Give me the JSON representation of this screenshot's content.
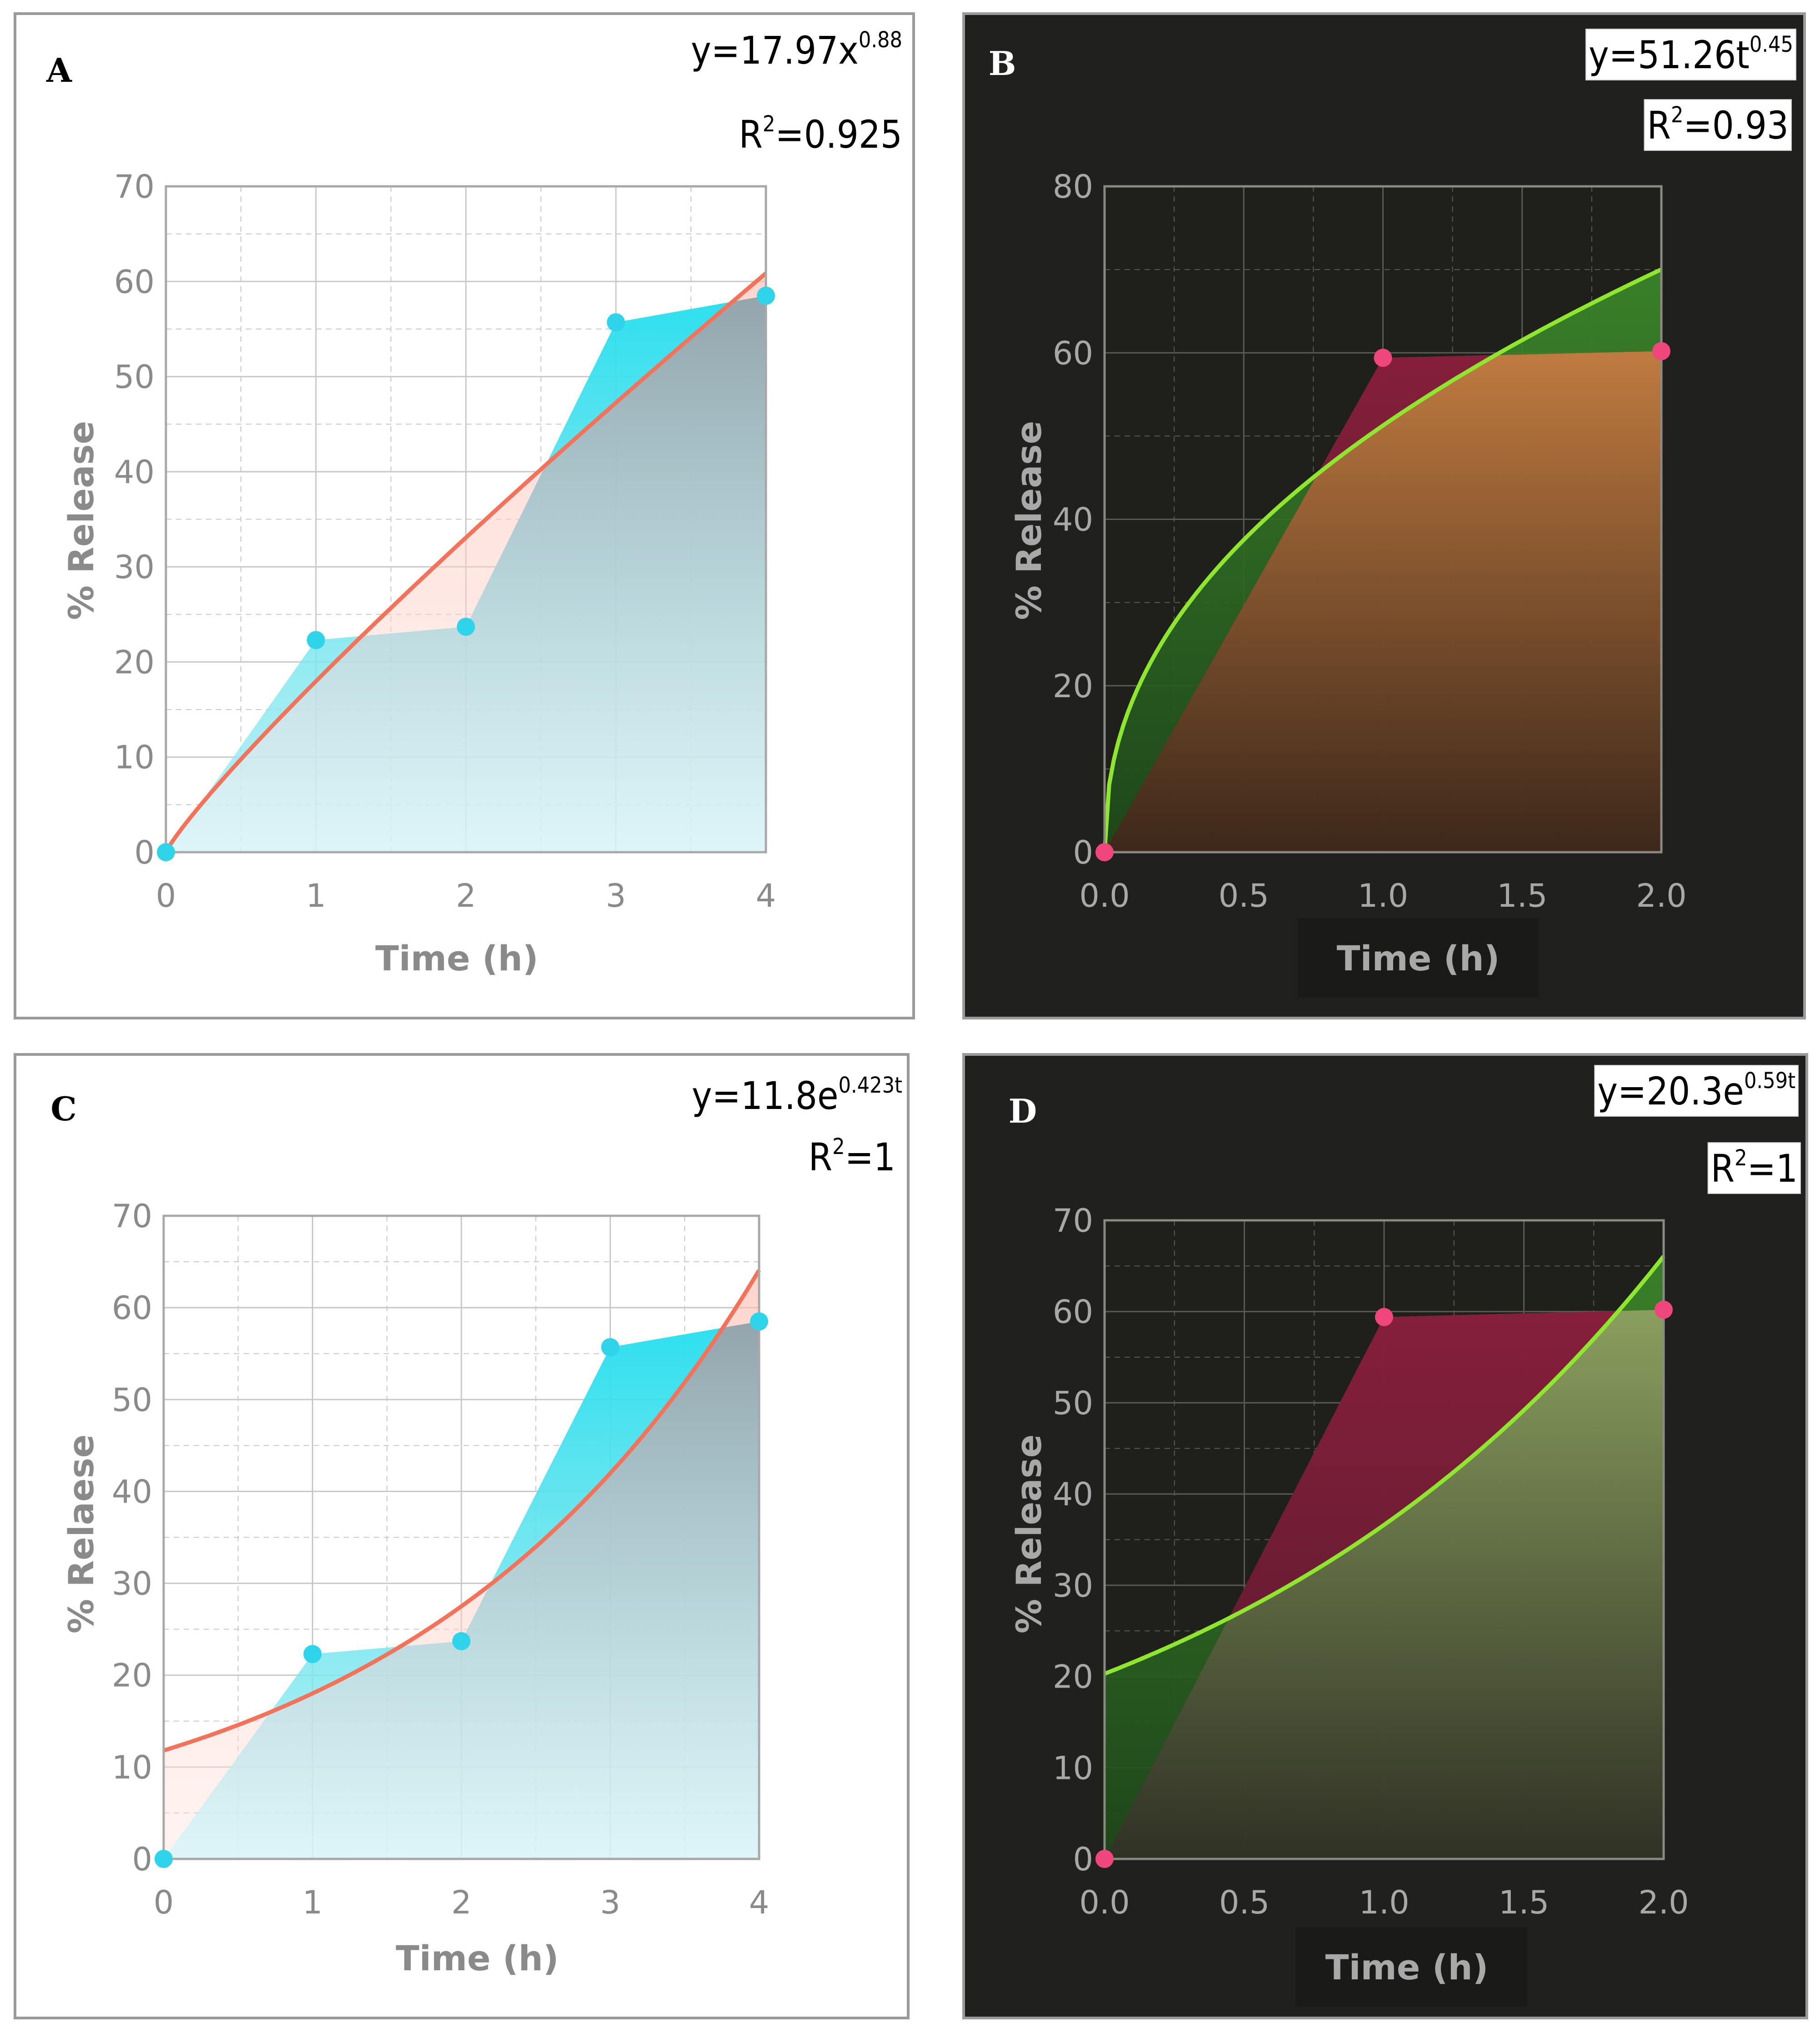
{
  "chart_data": [
    {
      "panel": "A",
      "type": "line",
      "theme": "light",
      "equation": {
        "base": "y=17.97x",
        "exponent": "0.88"
      },
      "r2": {
        "base": "R",
        "exponent": "2",
        "rest": "=0.925"
      },
      "xlabel": "Time (h)",
      "ylabel": "% Release",
      "xlim": [
        0,
        4
      ],
      "ylim": [
        0,
        70
      ],
      "xticks": [
        "0",
        "1",
        "2",
        "3",
        "4"
      ],
      "yticks": [
        "0",
        "10",
        "20",
        "30",
        "40",
        "50",
        "60",
        "70"
      ],
      "xtick_values": [
        0,
        1,
        2,
        3,
        4
      ],
      "ytick_values": [
        0,
        10,
        20,
        30,
        40,
        50,
        60,
        70
      ],
      "x": [
        0,
        1,
        2,
        3,
        4
      ],
      "observed": [
        0,
        22.3,
        23.7,
        55.7,
        58.5
      ],
      "fit": {
        "model": "power",
        "a": 17.97,
        "b": 0.88
      },
      "colors": {
        "points": "#2fd3ea",
        "fit": "#f2735a",
        "area": "#9ca3aa"
      }
    },
    {
      "panel": "B",
      "type": "line",
      "theme": "dark",
      "equation": {
        "base": "y=51.26t",
        "exponent": "0.45"
      },
      "r2": {
        "base": "R",
        "exponent": "2",
        "rest": "=0.93"
      },
      "xlabel": "Time (h)",
      "ylabel": "% Release",
      "xlim": [
        0,
        2
      ],
      "ylim": [
        0,
        80
      ],
      "xticks": [
        "0.0",
        "0.5",
        "1.0",
        "1.5",
        "2.0"
      ],
      "yticks": [
        "0",
        "20",
        "40",
        "60",
        "80"
      ],
      "xtick_values": [
        0,
        0.5,
        1,
        1.5,
        2
      ],
      "ytick_values": [
        0,
        20,
        40,
        60,
        80
      ],
      "x": [
        0,
        1,
        2
      ],
      "observed": [
        0,
        59.4,
        60.2
      ],
      "fit": {
        "model": "power",
        "a": 51.26,
        "b": 0.45
      },
      "colors": {
        "points": "#f0467e",
        "fit": "#8ee62e",
        "area": "#b87a3a"
      }
    },
    {
      "panel": "C",
      "type": "line",
      "theme": "light",
      "equation": {
        "base": "y=11.8e",
        "exponent": "0.423t"
      },
      "r2": {
        "base": "R",
        "exponent": "2",
        "rest": "=1"
      },
      "xlabel": "Time (h)",
      "ylabel": "% Relaese",
      "xlim": [
        0,
        4
      ],
      "ylim": [
        0,
        70
      ],
      "xticks": [
        "0",
        "1",
        "2",
        "3",
        "4"
      ],
      "yticks": [
        "0",
        "10",
        "20",
        "30",
        "40",
        "50",
        "60",
        "70"
      ],
      "xtick_values": [
        0,
        1,
        2,
        3,
        4
      ],
      "ytick_values": [
        0,
        10,
        20,
        30,
        40,
        50,
        60,
        70
      ],
      "x": [
        0,
        1,
        2,
        3,
        4
      ],
      "observed": [
        0,
        22.3,
        23.7,
        55.7,
        58.5
      ],
      "fit": {
        "model": "exponential",
        "a": 11.8,
        "b": 0.423
      },
      "colors": {
        "points": "#2fd3ea",
        "fit": "#f2735a",
        "area": "#9ca3aa"
      }
    },
    {
      "panel": "D",
      "type": "line",
      "theme": "dark",
      "equation": {
        "base": "y=20.3e",
        "exponent": "0.59t"
      },
      "r2": {
        "base": "R",
        "exponent": "2",
        "rest": "=1"
      },
      "xlabel": "Time (h)",
      "ylabel": "% Release",
      "xlim": [
        0,
        2
      ],
      "ylim": [
        0,
        70
      ],
      "xticks": [
        "0.0",
        "0.5",
        "1.0",
        "1.5",
        "2.0"
      ],
      "yticks": [
        "0",
        "10",
        "20",
        "30",
        "40",
        "50",
        "60",
        "70"
      ],
      "xtick_values": [
        0,
        0.5,
        1,
        1.5,
        2
      ],
      "ytick_values": [
        0,
        10,
        20,
        30,
        40,
        50,
        60,
        70
      ],
      "x": [
        0,
        1,
        2
      ],
      "observed": [
        0,
        59.4,
        60.2
      ],
      "fit": {
        "model": "exponential",
        "a": 20.3,
        "b": 0.59
      },
      "colors": {
        "points": "#f0467e",
        "fit": "#8ee62e",
        "area": "#7d9a4a"
      }
    }
  ]
}
